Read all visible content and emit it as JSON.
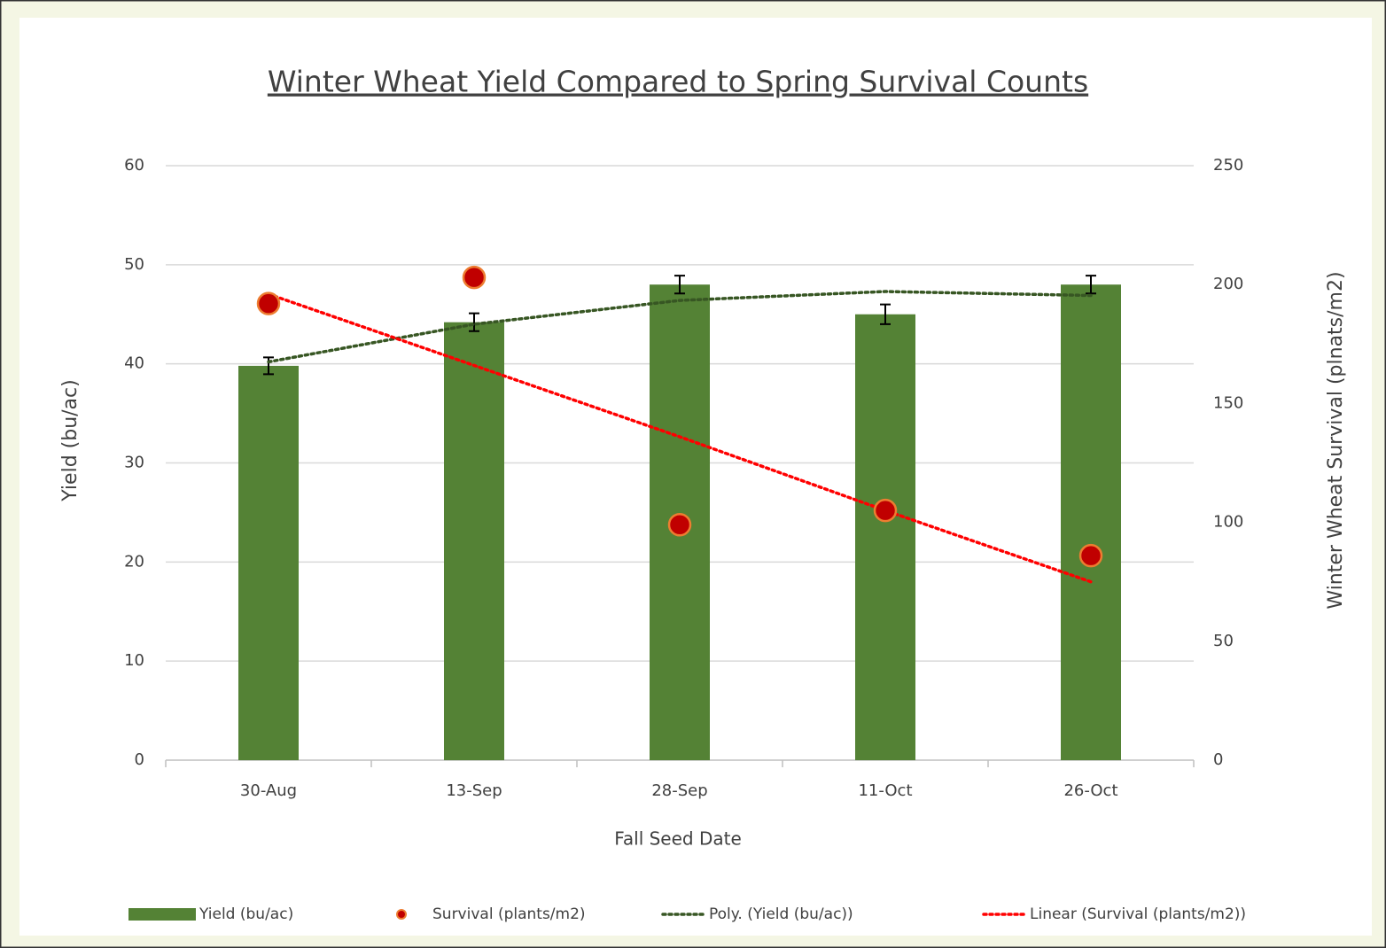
{
  "chart_data": {
    "type": "bar",
    "title": "Winter Wheat Yield Compared to Spring Survival Counts",
    "xlabel": "Fall Seed Date",
    "ylabel": "Yield (bu/ac)",
    "y2label": "Winter Wheat Survival (plnats/m2)",
    "categories": [
      "30-Aug",
      "13-Sep",
      "28-Sep",
      "11-Oct",
      "26-Oct"
    ],
    "series": [
      {
        "name": "Yield (bu/ac)",
        "type": "bar",
        "color": "#548235",
        "values": [
          39.8,
          44.2,
          48,
          45,
          48
        ],
        "errors": [
          0.85,
          0.9,
          0.9,
          1.0,
          0.9
        ]
      },
      {
        "name": "Survival (plants/m2)",
        "type": "scatter",
        "axis": "y2",
        "color": "#c00000",
        "edgecolor": "#ed7d31",
        "values": [
          192,
          203,
          99,
          105,
          86
        ]
      },
      {
        "name": "Poly. (Yield (bu/ac))",
        "type": "line",
        "linestyle": "dotted",
        "color": "#375623",
        "values": [
          40.2,
          44,
          46.4,
          47.3,
          46.9
        ]
      },
      {
        "name": "Linear (Survival (plants/m2))",
        "type": "line",
        "linestyle": "dotted",
        "axis": "y2",
        "color": "#ff0000",
        "values": [
          196,
          166,
          136,
          105,
          75
        ]
      }
    ],
    "ylim": [
      0,
      60
    ],
    "yticks": [
      0,
      10,
      20,
      30,
      40,
      50,
      60
    ],
    "y2lim": [
      0,
      250
    ],
    "y2ticks": [
      0,
      50,
      100,
      150,
      200,
      250
    ],
    "grid": true,
    "legend": "bottom"
  }
}
